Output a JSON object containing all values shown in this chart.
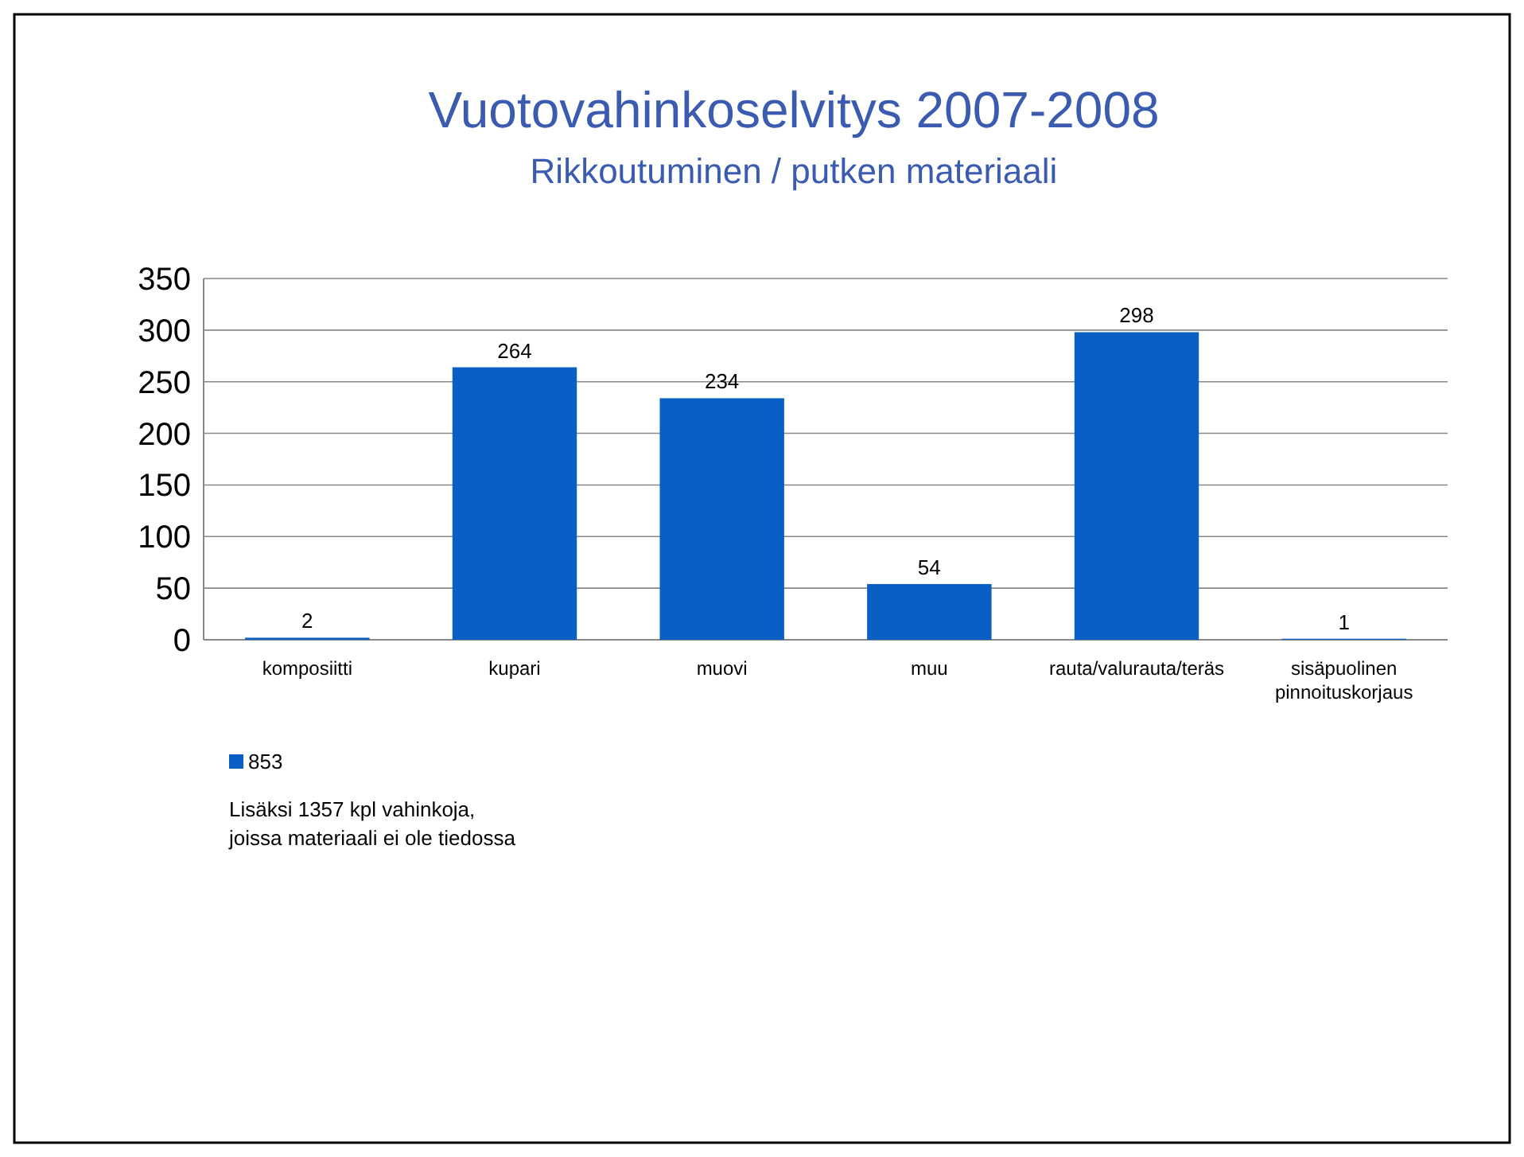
{
  "chart_data": {
    "type": "bar",
    "title": "Vuotovahinkoselvitys 2007-2008",
    "subtitle": "Rikkoutuminen  / putken materiaali",
    "categories": [
      "komposiitti",
      "kupari",
      "muovi",
      "muu",
      "rauta/valurauta/teräs",
      "sisäpuolinen pinnoituskorjaus"
    ],
    "series": [
      {
        "name": "853",
        "color": "#0a5fc4",
        "values": [
          2,
          264,
          234,
          54,
          298,
          1
        ]
      }
    ],
    "ylim": [
      0,
      350
    ],
    "yticks": [
      0,
      50,
      100,
      150,
      200,
      250,
      300,
      350
    ],
    "grid": "y",
    "data_labels": true,
    "legend": "bottom",
    "annotations": [
      "Lisäksi 1357 kpl vahinkoja,\njoissa materiaali ei ole tiedossa"
    ]
  }
}
